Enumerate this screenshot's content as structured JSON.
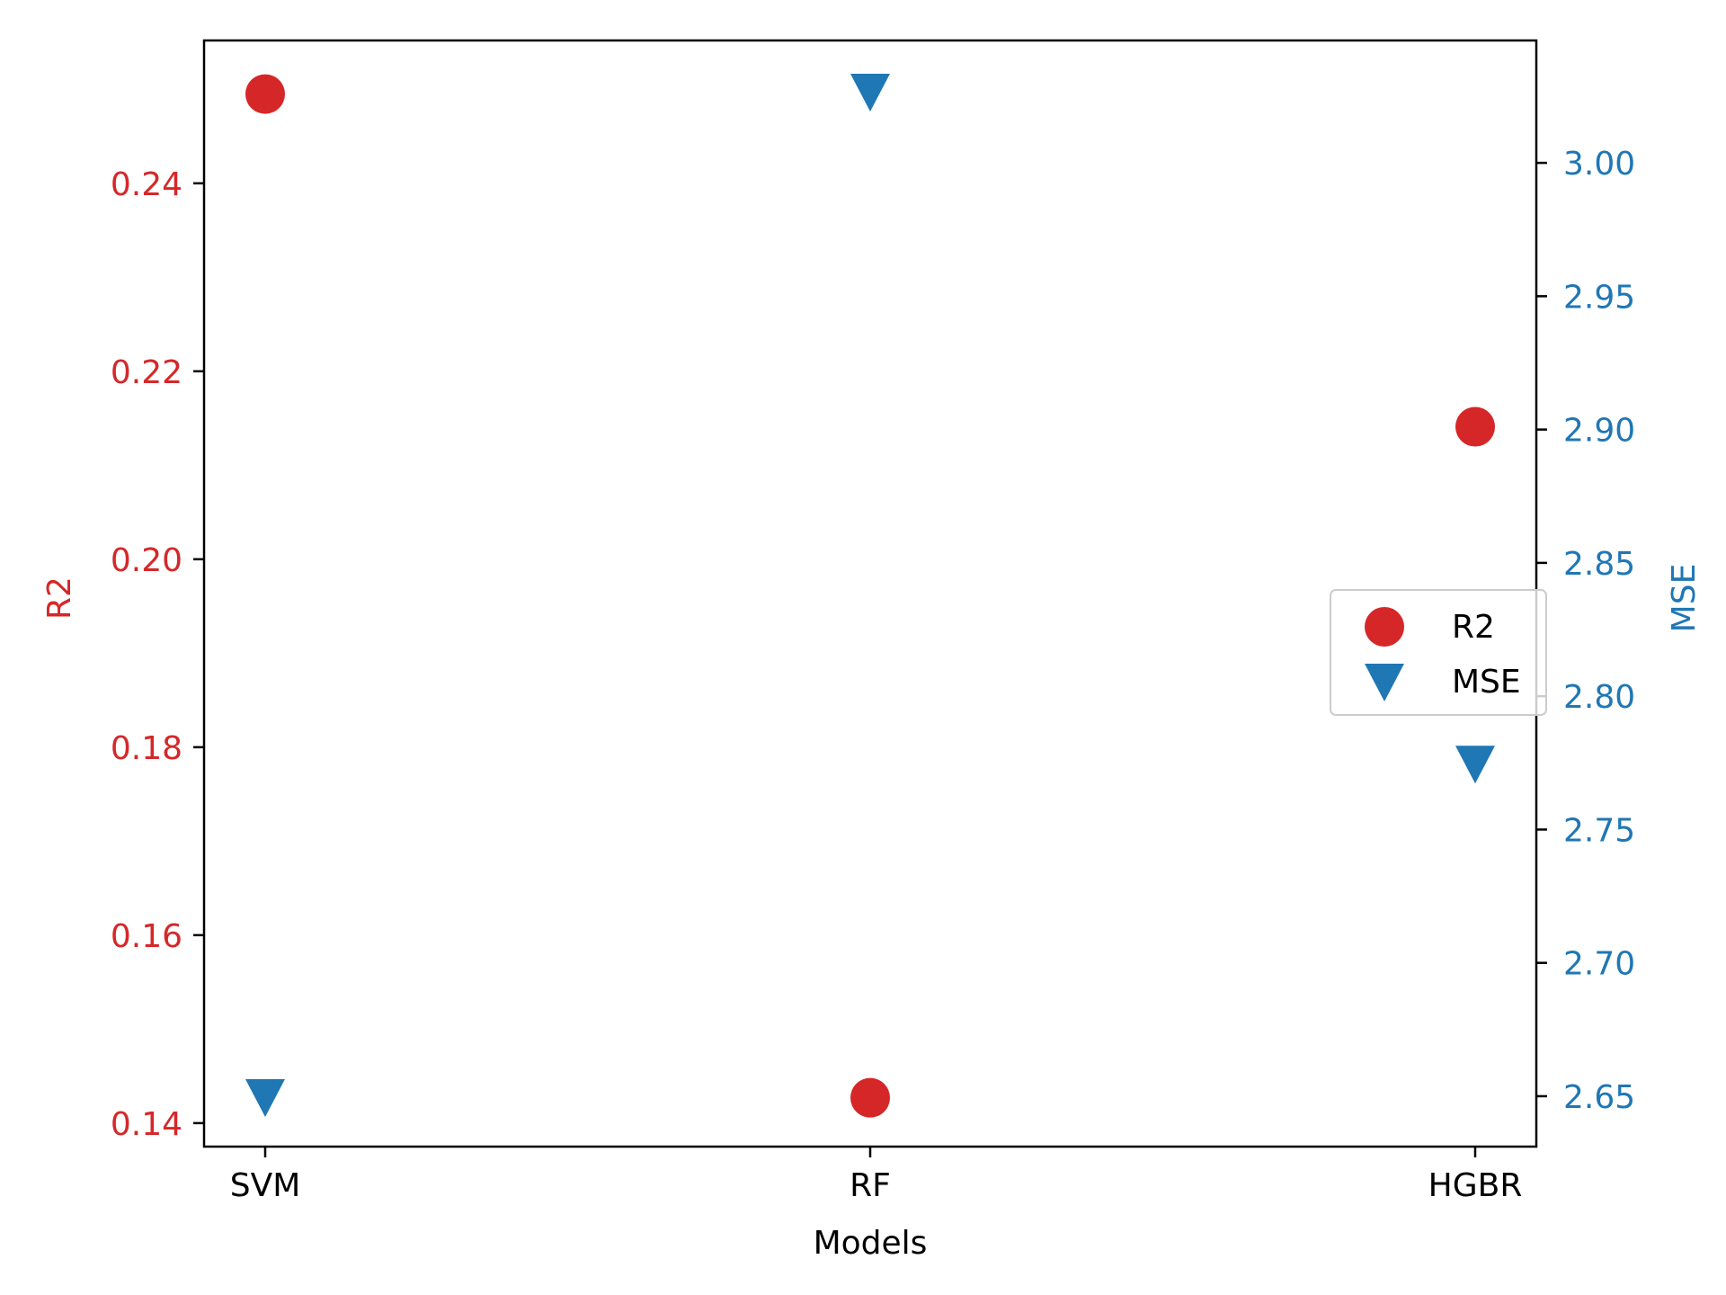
{
  "chart_data": {
    "type": "scatter",
    "title": "",
    "xlabel": "Models",
    "categories": [
      "SVM",
      "RF",
      "HGBR"
    ],
    "series": [
      {
        "name": "R2",
        "axis": "left",
        "marker": "circle",
        "color": "#d62728",
        "values": [
          0.2495,
          0.1427,
          0.2141
        ]
      },
      {
        "name": "MSE",
        "axis": "right",
        "marker": "triangle-down",
        "color": "#1f77b4",
        "values": [
          2.65,
          3.027,
          2.775
        ]
      }
    ],
    "y_left": {
      "label": "R2",
      "color": "#d62728",
      "ylim": [
        0.1375,
        0.2552
      ],
      "ticks": [
        0.14,
        0.16,
        0.18,
        0.2,
        0.22,
        0.24
      ],
      "tick_labels": [
        "0.14",
        "0.16",
        "0.18",
        "0.20",
        "0.22",
        "0.24"
      ]
    },
    "y_right": {
      "label": "MSE",
      "color": "#1f77b4",
      "ylim": [
        2.6311,
        3.0459
      ],
      "ticks": [
        2.65,
        2.7,
        2.75,
        2.8,
        2.85,
        2.9,
        2.95,
        3.0
      ],
      "tick_labels": [
        "2.65",
        "2.70",
        "2.75",
        "2.80",
        "2.85",
        "2.90",
        "2.95",
        "3.00"
      ]
    },
    "grid": false,
    "legend": {
      "placement": "center-right",
      "entries": [
        "R2",
        "MSE"
      ]
    }
  }
}
